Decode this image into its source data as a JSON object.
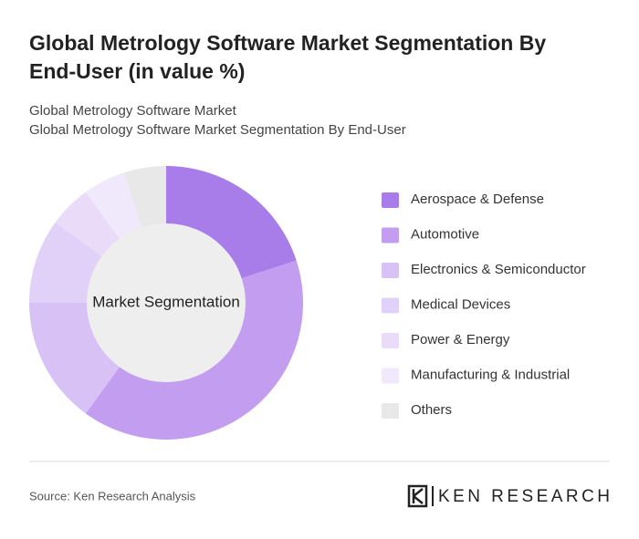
{
  "chart_data": {
    "type": "pie",
    "title": "Global Metrology Software Market Segmentation By End-User (in value %)",
    "subtitle": [
      "Global Metrology Software Market",
      "Global Metrology Software Market Segmentation By End-User"
    ],
    "center_label": "Market Segmentation",
    "categories": [
      "Aerospace & Defense",
      "Automotive",
      "Electronics & Semiconductor",
      "Medical Devices",
      "Power & Energy",
      "Manufacturing & Industrial",
      "Others"
    ],
    "values": [
      20,
      40,
      15,
      10,
      5,
      5,
      5
    ],
    "colors": [
      "#a87ce9",
      "#c39df0",
      "#d8c1f5",
      "#e1d0f7",
      "#eadcf9",
      "#f0e8fb",
      "#e8e8e8"
    ],
    "source": "Source: Ken Research Analysis",
    "brand": "KEN RESEARCH"
  }
}
